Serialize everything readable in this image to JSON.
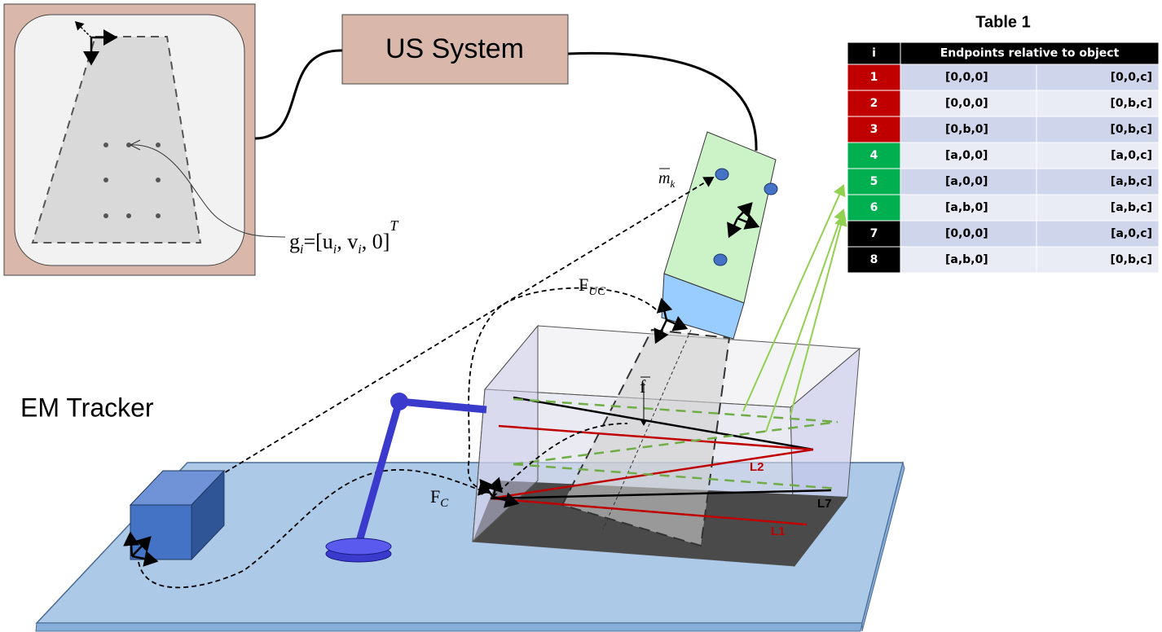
{
  "us_system": "US System",
  "em_tracker": "EM Tracker",
  "table": {
    "title": "Table 1",
    "header": [
      "i",
      "Endpoints relative to object"
    ],
    "rows": [
      [
        "1",
        "[0,0,0]",
        "[0,0,c]"
      ],
      [
        "2",
        "[0,0,0]",
        "[0,b,c]"
      ],
      [
        "3",
        "[0,b,0]",
        "[0,b,c]"
      ],
      [
        "4",
        "[a,0,0]",
        "[a,0,c]"
      ],
      [
        "5",
        "[a,0,0]",
        "[a,b,c]"
      ],
      [
        "6",
        "[a,b,0]",
        "[a,b,c]"
      ],
      [
        "7",
        "[0,0,0]",
        "[a,0,c]"
      ],
      [
        "8",
        "[a,b,0]",
        "[0,b,c]"
      ]
    ],
    "row_colors": [
      "#c00000",
      "#c00000",
      "#c00000",
      "#00b050",
      "#00b050",
      "#00b050",
      "#000000",
      "#000000"
    ]
  },
  "labels": {
    "l1": "L1",
    "l2": "L2",
    "l7": "L7",
    "f_uc": {
      "base": "F",
      "sub": "UC"
    },
    "f_c": {
      "base": "F",
      "sub": "C"
    },
    "f_vec": "f",
    "m_k": {
      "base": "m",
      "sub": "k"
    },
    "g_formula": [
      "g",
      "i",
      "=[u",
      "i",
      ", v",
      "i",
      ", 0]",
      "T"
    ]
  }
}
